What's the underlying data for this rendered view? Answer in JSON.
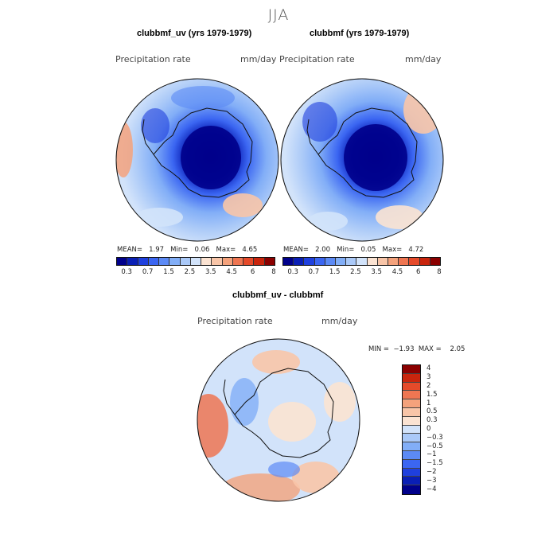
{
  "figure": {
    "season": "JJA"
  },
  "panels": [
    {
      "title": "clubbmf_uv (yrs 1979-1979)",
      "variable": "Precipitation rate",
      "units": "mm/day",
      "stats": {
        "mean_label": "MEAN=",
        "mean": "1.97",
        "min_label": "Min=",
        "min": "0.06",
        "max_label": "Max=",
        "max": "4.65"
      }
    },
    {
      "title": "clubbmf (yrs 1979-1979)",
      "variable": "Precipitation rate",
      "units": "mm/day",
      "stats": {
        "mean_label": "MEAN=",
        "mean": "2.00",
        "min_label": "Min=",
        "min": "0.05",
        "max_label": "Max=",
        "max": "4.72"
      }
    },
    {
      "title": "clubbmf_uv - clubbmf",
      "variable": "Precipitation rate",
      "units": "mm/day",
      "stats": {
        "min_label": "MIN =",
        "min": "−1.93",
        "max_label": "MAX =",
        "max": "2.05"
      }
    }
  ],
  "colorbar_main": {
    "colors": [
      "#00008b",
      "#0a1fb5",
      "#1f40de",
      "#3b66f2",
      "#5c8af5",
      "#82aef7",
      "#aac9f8",
      "#d2e3fa",
      "#fbe3d2",
      "#f8c5a8",
      "#f4a27c",
      "#ef7652",
      "#e54a2a",
      "#c9250d",
      "#8b0000"
    ],
    "tick_labels": [
      "0.3",
      "0.7",
      "1.5",
      "2.5",
      "3.5",
      "4.5",
      "6",
      "8"
    ]
  },
  "colorbar_diff": {
    "colors": [
      "#8b0000",
      "#c9250d",
      "#e54a2a",
      "#ef7652",
      "#f4a27c",
      "#f8c5a8",
      "#fbe3d2",
      "#d2e3fa",
      "#aac9f8",
      "#82aef7",
      "#5c8af5",
      "#3b66f2",
      "#1f40de",
      "#0a1fb5",
      "#00008b"
    ],
    "tick_labels": [
      "4",
      "3",
      "2",
      "1.5",
      "1",
      "0.5",
      "0.3",
      "0",
      "−0.3",
      "−0.5",
      "−1",
      "−1.5",
      "−2",
      "−3",
      "−4"
    ]
  }
}
